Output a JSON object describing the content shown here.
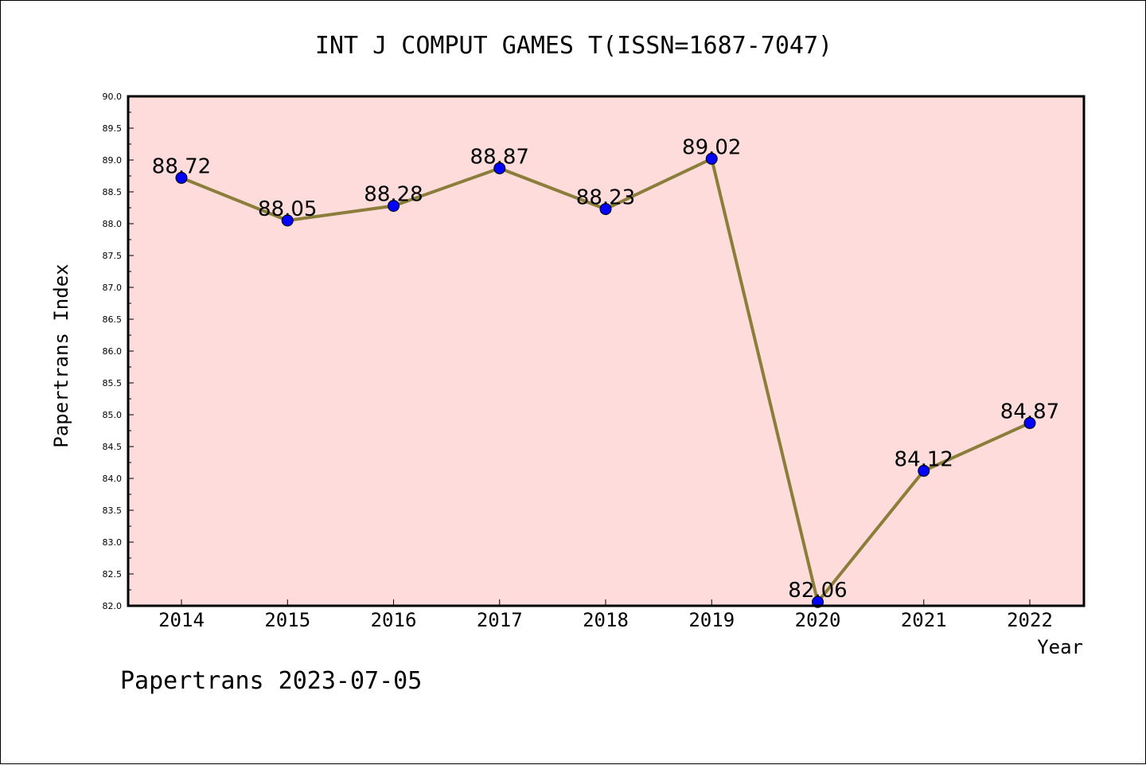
{
  "chart_data": {
    "type": "line",
    "title": "INT J COMPUT GAMES T(ISSN=1687-7047)",
    "xlabel": "Year",
    "ylabel": "Papertrans Index",
    "categories": [
      "2014",
      "2015",
      "2016",
      "2017",
      "2018",
      "2019",
      "2020",
      "2021",
      "2022"
    ],
    "values": [
      88.72,
      88.05,
      88.28,
      88.87,
      88.23,
      89.02,
      82.06,
      84.12,
      84.87
    ],
    "data_labels": [
      "88.72",
      "88.05",
      "88.28",
      "88.87",
      "88.23",
      "89.02",
      "82.06",
      "84.12",
      "84.87"
    ],
    "ylim": [
      82.0,
      90.0
    ],
    "yticks": [
      "82.0",
      "82.5",
      "83.0",
      "83.5",
      "84.0",
      "84.5",
      "85.0",
      "85.5",
      "86.0",
      "86.5",
      "87.0",
      "87.5",
      "88.0",
      "88.5",
      "89.0",
      "89.5",
      "90.0"
    ],
    "grid": false,
    "colors": {
      "plot_background": "#fddcdb",
      "line": "#8b7d3a",
      "marker": "#0000ff"
    }
  },
  "footer": "Papertrans 2023-07-05"
}
